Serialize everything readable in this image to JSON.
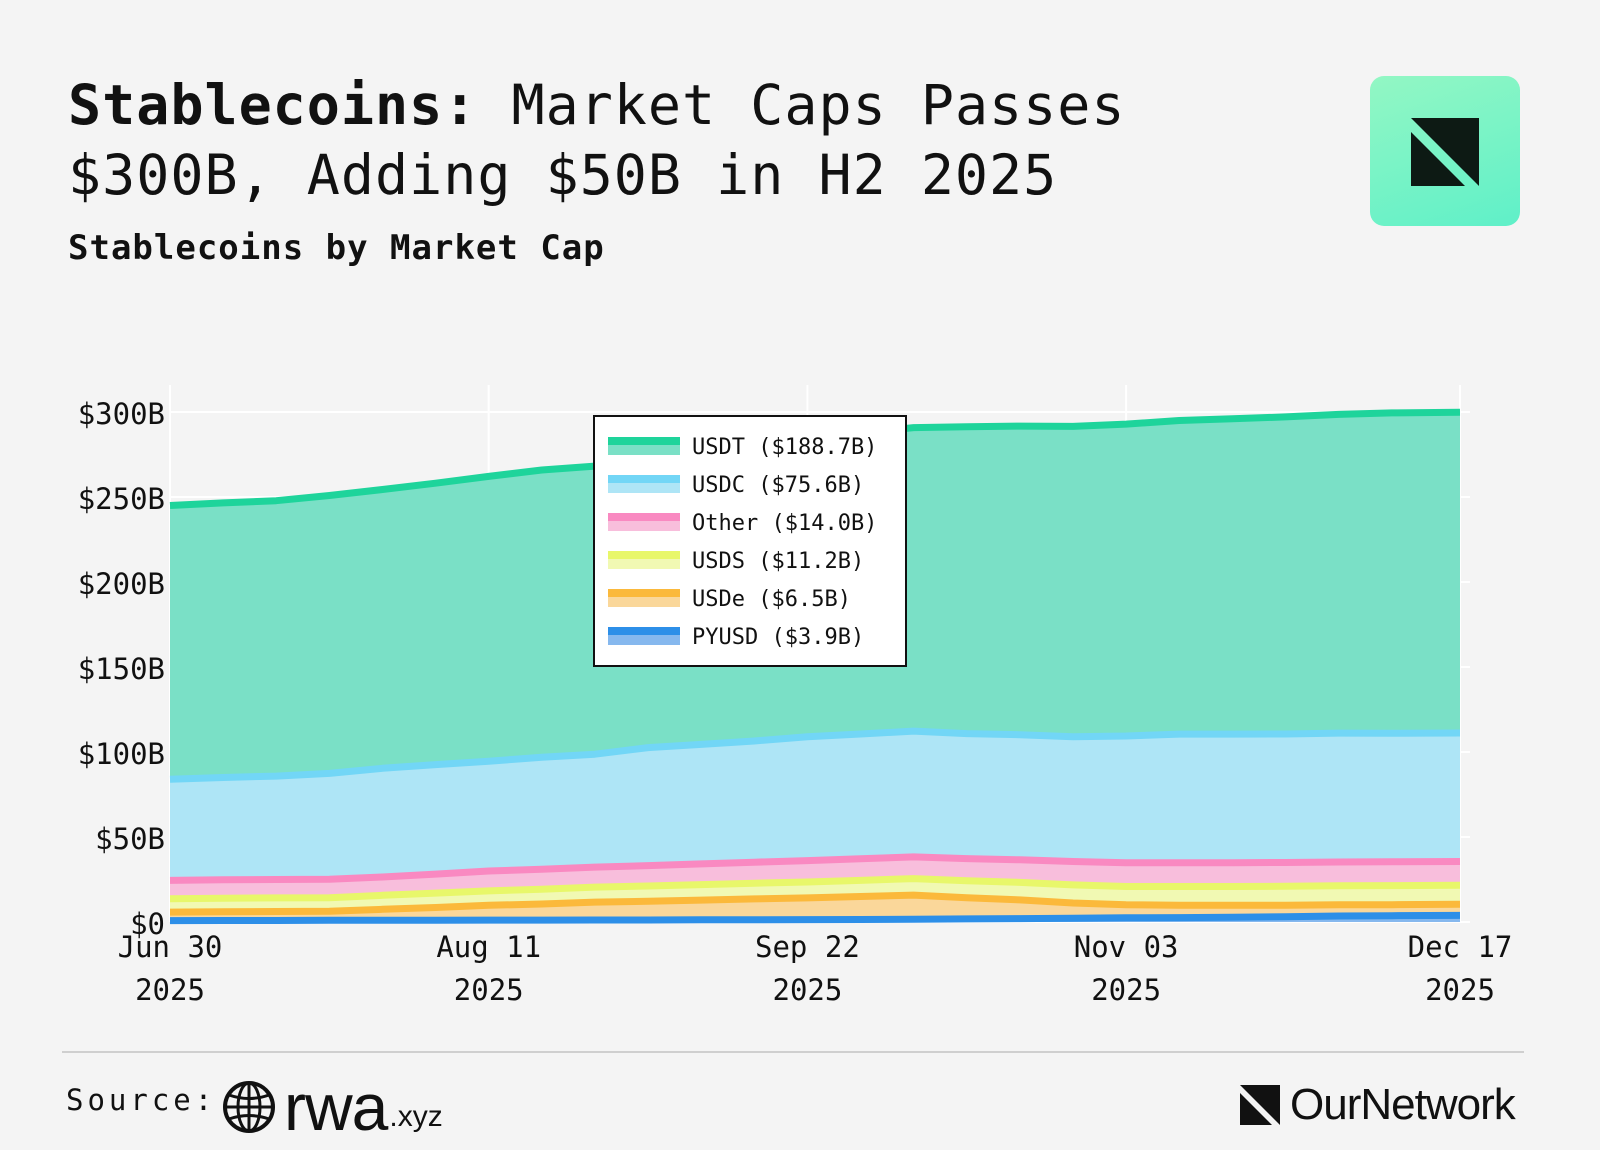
{
  "header": {
    "title_bold": "Stablecoins:",
    "title_rest": " Market Caps Passes $300B, Adding $50B in H2 2025",
    "subtitle": "Stablecoins by Market Cap"
  },
  "logo": {
    "icon": "ournetwork-mark-icon",
    "bg": "#7ef5c6"
  },
  "footer": {
    "source_label": "Source:",
    "source_name": "rwa",
    "source_tld": ".xyz",
    "brand": "OurNetwork"
  },
  "chart_data": {
    "type": "area",
    "stacked": true,
    "title": "Stablecoins by Market Cap",
    "xlabel": "",
    "ylabel": "",
    "ylim": [
      0,
      300
    ],
    "y_unit": "B",
    "yticks": [
      "$0",
      "$50B",
      "$100B",
      "$150B",
      "$200B",
      "$250B",
      "$300B"
    ],
    "ytick_values": [
      0,
      50,
      100,
      150,
      200,
      250,
      300
    ],
    "x_range_days": [
      0,
      170
    ],
    "xticks": [
      {
        "day": 0,
        "line1": "Jun 30",
        "line2": "2025"
      },
      {
        "day": 42,
        "line1": "Aug 11",
        "line2": "2025"
      },
      {
        "day": 84,
        "line1": "Sep 22",
        "line2": "2025"
      },
      {
        "day": 126,
        "line1": "Nov 03",
        "line2": "2025"
      },
      {
        "day": 170,
        "line1": "Dec 17",
        "line2": "2025"
      }
    ],
    "grid": true,
    "legend_position": "top-center",
    "x_days": [
      0,
      7,
      14,
      21,
      28,
      35,
      42,
      49,
      56,
      63,
      70,
      77,
      84,
      91,
      98,
      105,
      112,
      119,
      126,
      133,
      140,
      147,
      154,
      161,
      170
    ],
    "series": [
      {
        "name": "PYUSD",
        "label": "PYUSD ($3.9B)",
        "color": "#2d8fe8",
        "fill": "#86b8ee",
        "values": [
          0.8,
          0.9,
          0.9,
          1.0,
          1.0,
          1.0,
          1.1,
          1.1,
          1.2,
          1.2,
          1.3,
          1.3,
          1.4,
          1.5,
          1.6,
          1.8,
          2.0,
          2.2,
          2.5,
          2.6,
          2.8,
          3.1,
          3.5,
          3.7,
          3.9
        ]
      },
      {
        "name": "USDe",
        "label": "USDe ($6.5B)",
        "color": "#fbb93b",
        "fill": "#fad79a",
        "values": [
          5.0,
          5.1,
          5.3,
          5.3,
          6.5,
          7.5,
          8.7,
          9.5,
          10.5,
          11.0,
          11.6,
          12.3,
          12.8,
          13.5,
          14.2,
          12.5,
          11.0,
          9.0,
          7.6,
          7.3,
          7.0,
          6.8,
          6.6,
          6.5,
          6.5
        ]
      },
      {
        "name": "USDS",
        "label": "USDS ($11.2B)",
        "color": "#e8f76a",
        "fill": "#f1f9b3",
        "values": [
          7.9,
          8.0,
          8.0,
          8.0,
          8.2,
          8.5,
          8.5,
          8.7,
          8.8,
          9.0,
          9.1,
          9.2,
          9.3,
          9.5,
          9.7,
          10.0,
          10.3,
          10.6,
          10.8,
          11.0,
          11.1,
          11.1,
          11.2,
          11.2,
          11.2
        ]
      },
      {
        "name": "Other",
        "label": "Other ($14.0B)",
        "color": "#f989c1",
        "fill": "#f8bedc",
        "values": [
          10.8,
          10.8,
          10.8,
          10.8,
          10.8,
          11.2,
          11.7,
          11.7,
          11.8,
          12.0,
          12.2,
          12.4,
          12.6,
          12.7,
          12.8,
          13.0,
          13.3,
          13.8,
          14.0,
          14.0,
          14.0,
          14.0,
          14.0,
          14.0,
          14.0
        ]
      },
      {
        "name": "USDC",
        "label": "USDC ($75.6B)",
        "color": "#72d6f6",
        "fill": "#aee5f6",
        "values": [
          59.5,
          60.2,
          60.8,
          62.3,
          63.9,
          64.4,
          64.6,
          65.9,
          66.4,
          69.4,
          70.3,
          71.3,
          72.9,
          73.4,
          74.0,
          73.5,
          73.6,
          73.4,
          74.5,
          75.6,
          75.6,
          75.6,
          75.8,
          75.6,
          75.6
        ]
      },
      {
        "name": "USDT",
        "label": "USDT ($188.7B)",
        "color": "#1ed49b",
        "fill": "#7ae0c6",
        "values": [
          161.0,
          161.5,
          162.0,
          163.5,
          164.0,
          165.5,
          167.5,
          169.0,
          169.5,
          171.5,
          173.0,
          174.0,
          175.5,
          177.0,
          178.5,
          180.5,
          181.5,
          182.5,
          183.5,
          184.5,
          185.5,
          186.5,
          187.5,
          188.5,
          188.7
        ]
      }
    ]
  }
}
